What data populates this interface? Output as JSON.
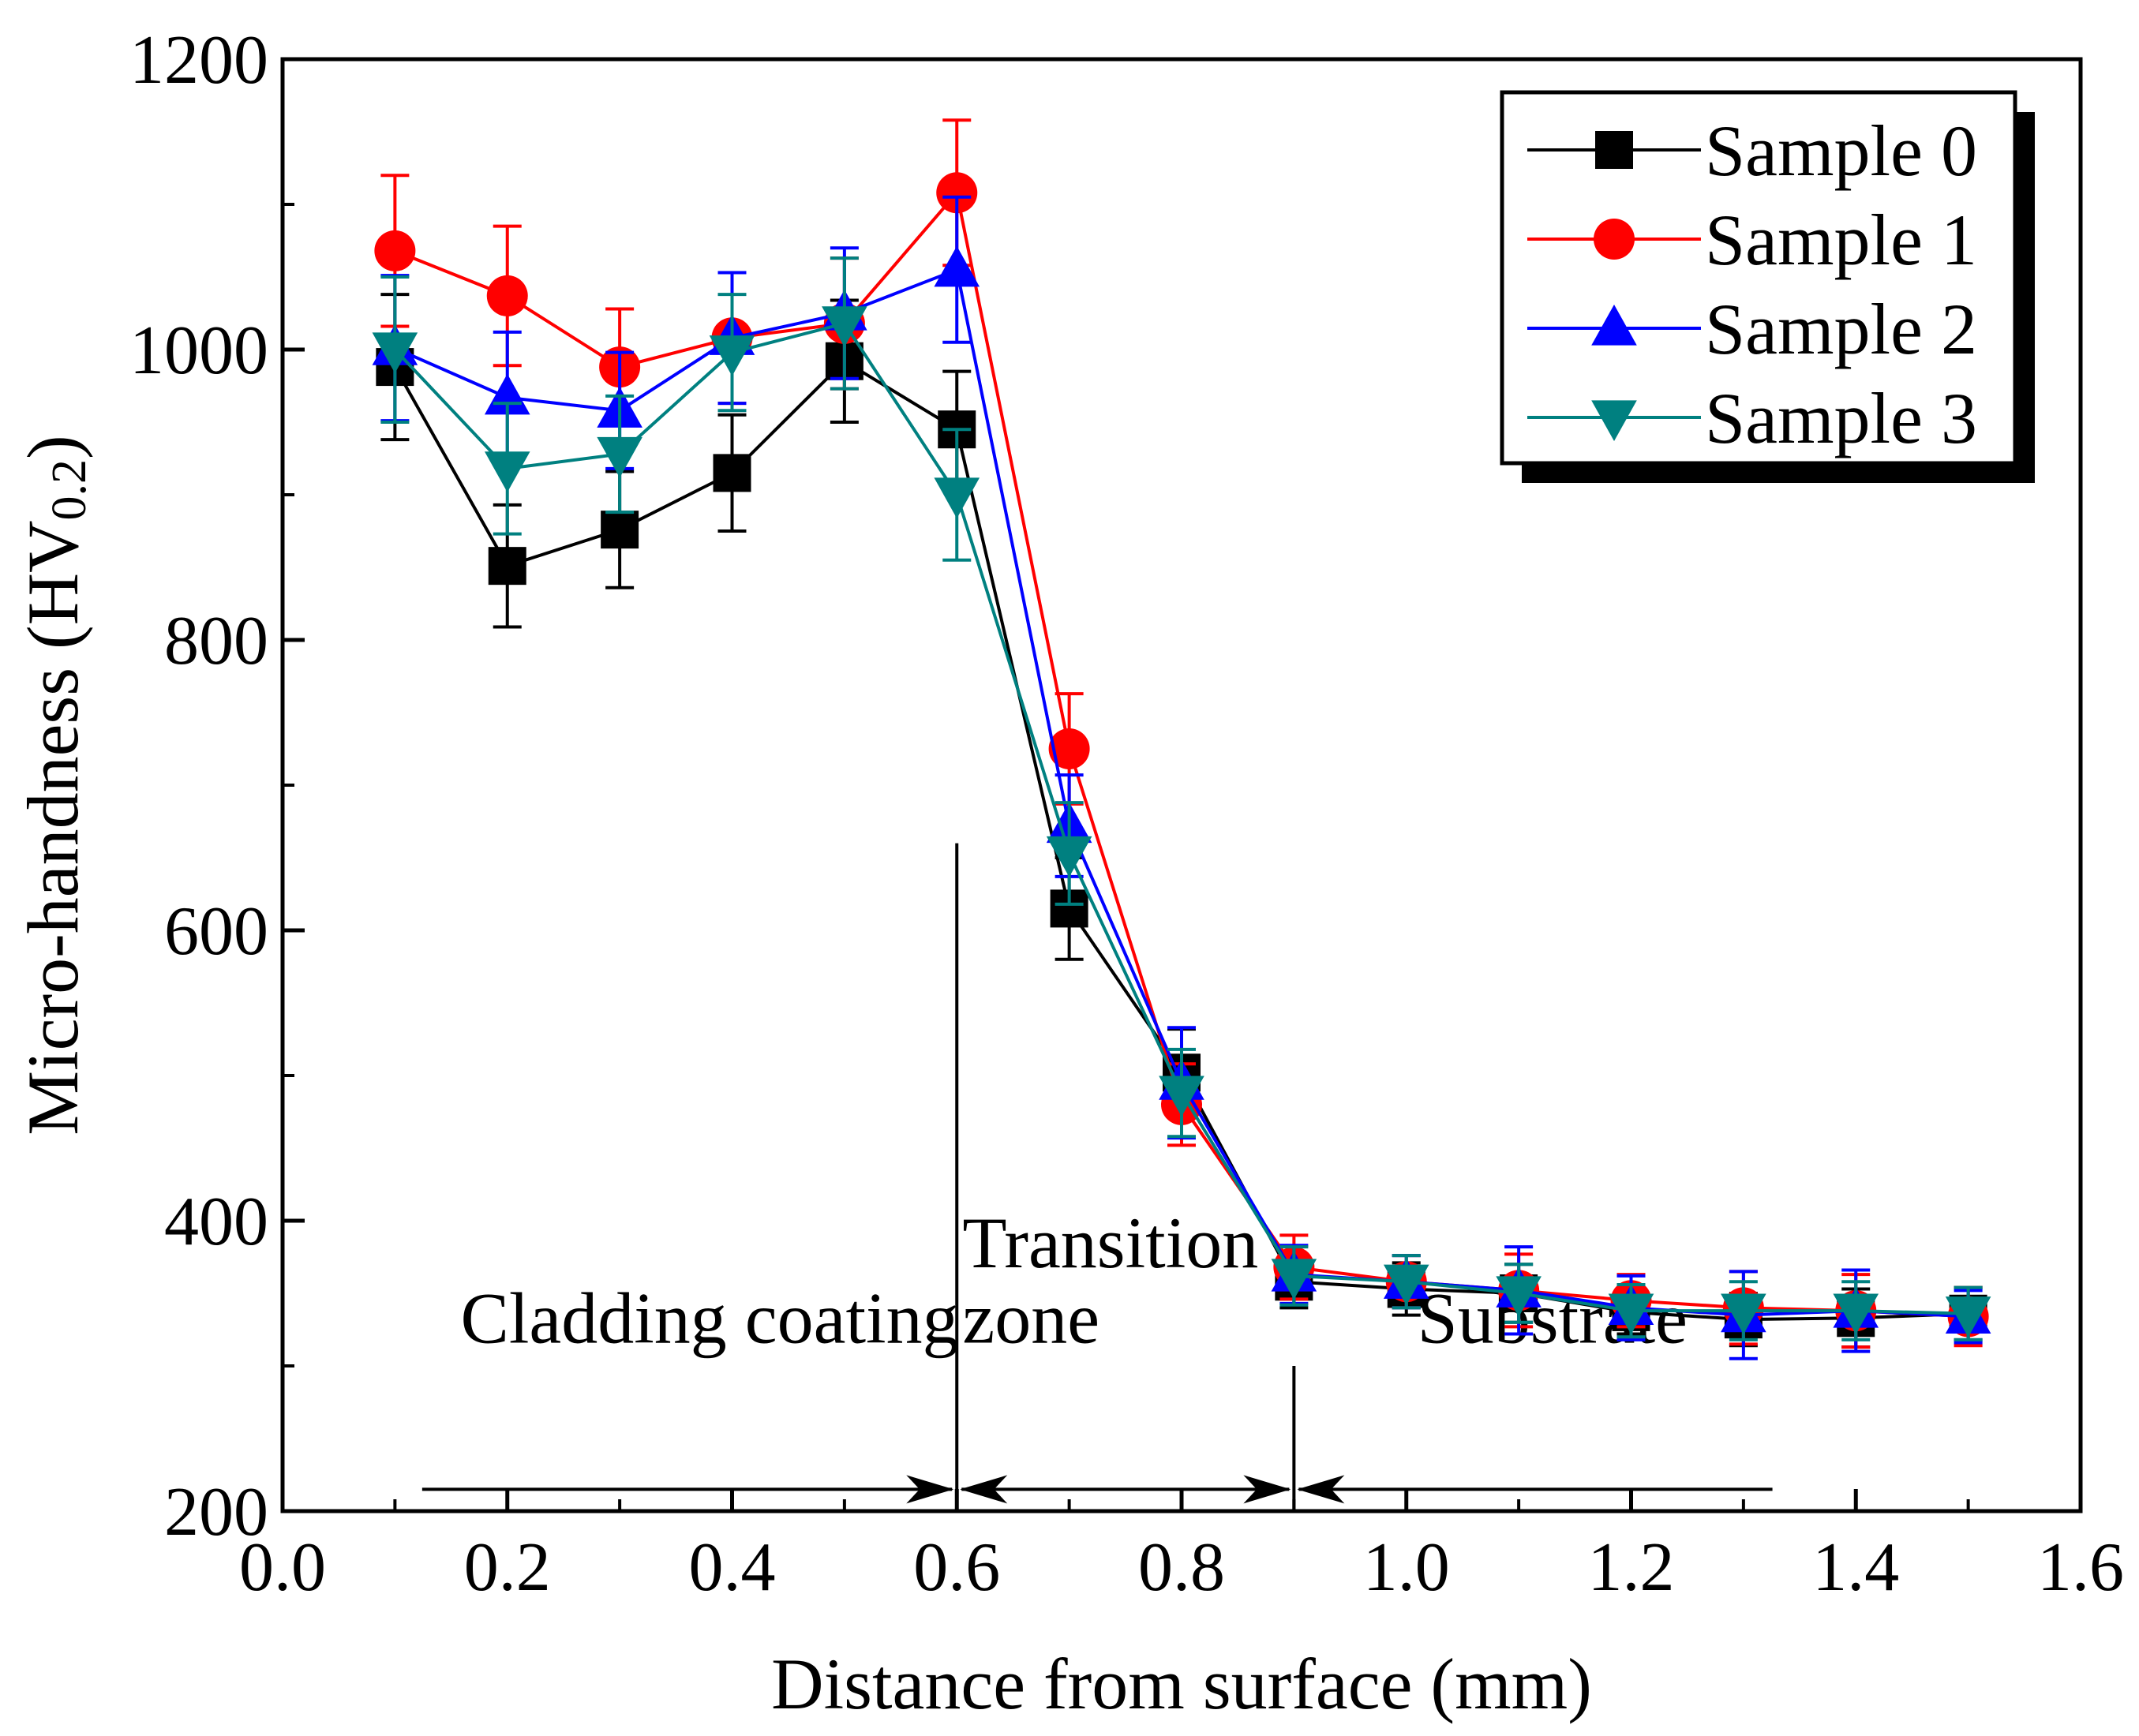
{
  "chart_data": {
    "type": "line",
    "xlabel": "Distance from surface (mm)",
    "ylabel": "Micro-handness (HV",
    "ylabel_sub": "0.2",
    "ylabel_close": ")",
    "xlim": [
      0.0,
      1.6
    ],
    "ylim": [
      200,
      1200
    ],
    "x_ticks": [
      "0.0",
      "0.2",
      "0.4",
      "0.6",
      "0.8",
      "1.0",
      "1.2",
      "1.4",
      "1.6"
    ],
    "y_ticks": [
      "200",
      "400",
      "600",
      "800",
      "1000",
      "1200"
    ],
    "x": [
      0.1,
      0.2,
      0.3,
      0.4,
      0.5,
      0.6,
      0.7,
      0.8,
      0.9,
      1.0,
      1.1,
      1.2,
      1.3,
      1.4,
      1.5
    ],
    "legend_position": "top-right",
    "series": [
      {
        "name": "Sample 0",
        "color": "#000000",
        "marker": "square",
        "values": [
          988,
          851,
          876,
          915,
          992,
          945,
          615,
          502,
          358,
          353,
          350,
          337,
          332,
          333,
          336
        ],
        "errors": [
          50,
          42,
          40,
          40,
          42,
          40,
          35,
          30,
          18,
          18,
          20,
          15,
          18,
          20,
          18
        ]
      },
      {
        "name": "Sample 1",
        "color": "#ff0000",
        "marker": "circle",
        "values": [
          1068,
          1037,
          988,
          1008,
          1018,
          1108,
          725,
          480,
          368,
          358,
          352,
          345,
          340,
          338,
          334
        ],
        "errors": [
          52,
          48,
          40,
          45,
          45,
          50,
          38,
          28,
          22,
          18,
          25,
          18,
          25,
          25,
          20
        ]
      },
      {
        "name": "Sample 2",
        "color": "#0000ff",
        "marker": "triangle-up",
        "values": [
          1001,
          967,
          958,
          1008,
          1025,
          1055,
          672,
          495,
          363,
          358,
          352,
          340,
          335,
          338,
          334
        ],
        "errors": [
          50,
          45,
          40,
          45,
          45,
          50,
          35,
          38,
          20,
          18,
          30,
          22,
          30,
          28,
          18
        ]
      },
      {
        "name": "Sample 3",
        "color": "#008080",
        "marker": "triangle-down",
        "values": [
          1000,
          918,
          928,
          998,
          1018,
          900,
          653,
          488,
          362,
          358,
          350,
          338,
          338,
          338,
          336
        ],
        "errors": [
          50,
          45,
          40,
          40,
          45,
          45,
          35,
          30,
          20,
          18,
          20,
          18,
          20,
          20,
          18
        ]
      }
    ],
    "annotations": {
      "boundaries": [
        0.6,
        0.9
      ],
      "boundary_top_y": 660,
      "regions": [
        {
          "label": "Cladding coating",
          "from": 0.12,
          "to": 0.6,
          "label_x": 0.38,
          "line_y": 1000,
          "arrows": "end"
        },
        {
          "label_lines": [
            "Transition",
            "zone"
          ],
          "from": 0.6,
          "to": 0.9,
          "label_x": 0.605,
          "arrows": "both"
        },
        {
          "label": "Substrate",
          "from": 0.9,
          "to": 1.33,
          "label_x": 1.13,
          "arrows": "start"
        }
      ],
      "arrow_y": 215
    }
  }
}
